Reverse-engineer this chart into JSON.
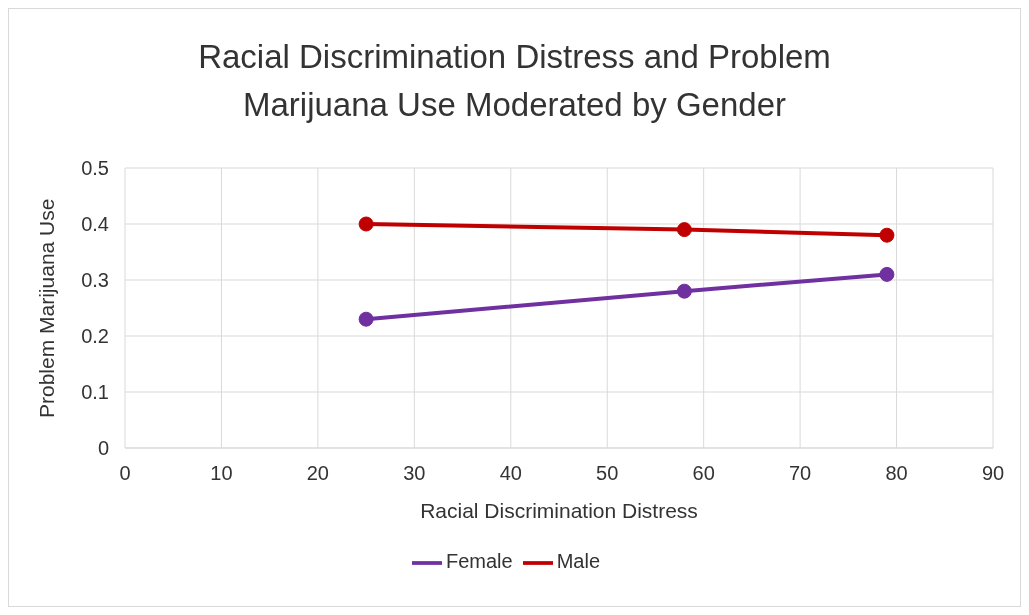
{
  "chart_data": {
    "type": "line",
    "title": "Racial Discrimination Distress and Problem Marijuana Use Moderated by Gender",
    "xlabel": "Racial Discrimination Distress",
    "ylabel": "Problem Marijuana Use",
    "x": [
      25,
      58,
      79
    ],
    "series": [
      {
        "name": "Male",
        "color": "#c00000",
        "values": [
          0.4,
          0.39,
          0.38
        ]
      },
      {
        "name": "Female",
        "color": "#7030a0",
        "values": [
          0.23,
          0.28,
          0.31
        ]
      }
    ],
    "xlim": [
      0,
      90
    ],
    "xticks": [
      0,
      10,
      20,
      30,
      40,
      50,
      60,
      70,
      80,
      90
    ],
    "ylim": [
      0,
      0.5
    ],
    "yticks": [
      0,
      0.1,
      0.2,
      0.3,
      0.4,
      0.5
    ],
    "grid": true,
    "legend": "bottom",
    "marker": "circle",
    "line_style": "solid"
  }
}
